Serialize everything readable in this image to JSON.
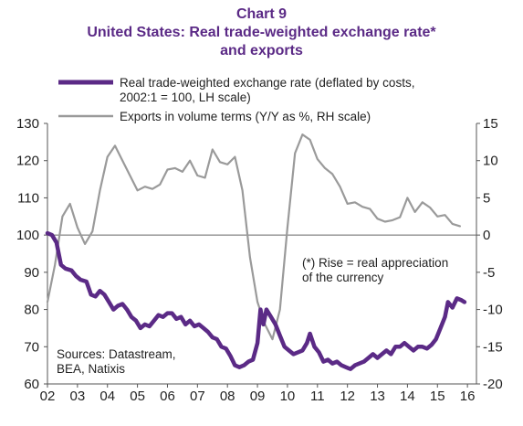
{
  "header": {
    "chart_number": "Chart 9",
    "title_line1": "United States: Real trade-weighted exchange rate*",
    "title_line2": "and exports"
  },
  "chart_data": {
    "type": "line",
    "title": "United States: Real trade-weighted exchange rate* and exports",
    "series": [
      {
        "name": "Real trade-weighted exchange rate (deflated by costs, 2002:1 = 100, LH scale)",
        "legend_line1": "Real trade-weighted exchange rate (deflated by costs,",
        "legend_line2": "2002:1 = 100, LH scale)",
        "axis": "left",
        "color": "#5b2a86",
        "points": [
          [
            2002.0,
            100.5
          ],
          [
            2002.15,
            100
          ],
          [
            2002.3,
            98
          ],
          [
            2002.45,
            92
          ],
          [
            2002.6,
            91
          ],
          [
            2002.8,
            90.5
          ],
          [
            2002.95,
            89
          ],
          [
            2003.1,
            88
          ],
          [
            2003.3,
            87.5
          ],
          [
            2003.45,
            84
          ],
          [
            2003.6,
            83.5
          ],
          [
            2003.75,
            85
          ],
          [
            2003.9,
            84
          ],
          [
            2004.05,
            82
          ],
          [
            2004.2,
            80
          ],
          [
            2004.35,
            81
          ],
          [
            2004.5,
            81.5
          ],
          [
            2004.65,
            80
          ],
          [
            2004.8,
            78
          ],
          [
            2004.95,
            77
          ],
          [
            2005.1,
            75
          ],
          [
            2005.25,
            76
          ],
          [
            2005.4,
            75.5
          ],
          [
            2005.55,
            77
          ],
          [
            2005.7,
            78.5
          ],
          [
            2005.85,
            78
          ],
          [
            2006.0,
            79
          ],
          [
            2006.15,
            79
          ],
          [
            2006.3,
            77.5
          ],
          [
            2006.45,
            78
          ],
          [
            2006.6,
            76
          ],
          [
            2006.75,
            77
          ],
          [
            2006.9,
            75.5
          ],
          [
            2007.05,
            76
          ],
          [
            2007.2,
            75
          ],
          [
            2007.35,
            74
          ],
          [
            2007.5,
            72.5
          ],
          [
            2007.65,
            72
          ],
          [
            2007.8,
            70
          ],
          [
            2007.95,
            69.5
          ],
          [
            2008.1,
            67.5
          ],
          [
            2008.25,
            65
          ],
          [
            2008.4,
            64.5
          ],
          [
            2008.55,
            65
          ],
          [
            2008.7,
            66
          ],
          [
            2008.85,
            66.5
          ],
          [
            2009.0,
            71
          ],
          [
            2009.1,
            80
          ],
          [
            2009.2,
            76
          ],
          [
            2009.3,
            80
          ],
          [
            2009.45,
            78
          ],
          [
            2009.6,
            76
          ],
          [
            2009.75,
            73
          ],
          [
            2009.9,
            70
          ],
          [
            2010.05,
            69
          ],
          [
            2010.2,
            68
          ],
          [
            2010.35,
            68.5
          ],
          [
            2010.5,
            69
          ],
          [
            2010.65,
            71
          ],
          [
            2010.75,
            73.5
          ],
          [
            2010.9,
            70
          ],
          [
            2011.05,
            68.5
          ],
          [
            2011.2,
            66
          ],
          [
            2011.35,
            66.5
          ],
          [
            2011.5,
            65.5
          ],
          [
            2011.65,
            66
          ],
          [
            2011.8,
            65
          ],
          [
            2011.95,
            64.5
          ],
          [
            2012.1,
            64
          ],
          [
            2012.25,
            65
          ],
          [
            2012.4,
            65.5
          ],
          [
            2012.55,
            66
          ],
          [
            2012.7,
            67
          ],
          [
            2012.85,
            68
          ],
          [
            2013.0,
            67
          ],
          [
            2013.15,
            68
          ],
          [
            2013.3,
            69
          ],
          [
            2013.45,
            68
          ],
          [
            2013.6,
            70
          ],
          [
            2013.75,
            70
          ],
          [
            2013.9,
            71
          ],
          [
            2014.05,
            70
          ],
          [
            2014.2,
            69
          ],
          [
            2014.35,
            70
          ],
          [
            2014.5,
            70
          ],
          [
            2014.65,
            69.5
          ],
          [
            2014.8,
            70.5
          ],
          [
            2014.95,
            72
          ],
          [
            2015.1,
            75
          ],
          [
            2015.25,
            78
          ],
          [
            2015.35,
            82
          ],
          [
            2015.5,
            80.5
          ],
          [
            2015.65,
            83
          ],
          [
            2015.8,
            82.5
          ],
          [
            2015.9,
            82
          ]
        ]
      },
      {
        "name": "Exports in volume terms (Y/Y as %, RH scale)",
        "legend_line1": "Exports in volume terms (Y/Y as %, RH scale)",
        "axis": "right",
        "color": "#9a9a9a",
        "points": [
          [
            2002.0,
            -9
          ],
          [
            2002.25,
            -4
          ],
          [
            2002.5,
            2.5
          ],
          [
            2002.75,
            4.2
          ],
          [
            2003.0,
            1
          ],
          [
            2003.25,
            -1.2
          ],
          [
            2003.5,
            0.5
          ],
          [
            2003.75,
            6
          ],
          [
            2004.0,
            10.5
          ],
          [
            2004.25,
            12
          ],
          [
            2004.5,
            10
          ],
          [
            2004.75,
            8
          ],
          [
            2005.0,
            6
          ],
          [
            2005.25,
            6.5
          ],
          [
            2005.5,
            6.2
          ],
          [
            2005.75,
            6.8
          ],
          [
            2006.0,
            8.8
          ],
          [
            2006.25,
            9
          ],
          [
            2006.5,
            8.5
          ],
          [
            2006.75,
            10
          ],
          [
            2007.0,
            8
          ],
          [
            2007.25,
            7.7
          ],
          [
            2007.5,
            11.5
          ],
          [
            2007.75,
            9.8
          ],
          [
            2008.0,
            9.5
          ],
          [
            2008.25,
            10.5
          ],
          [
            2008.5,
            6
          ],
          [
            2008.75,
            -3
          ],
          [
            2009.0,
            -9
          ],
          [
            2009.25,
            -12
          ],
          [
            2009.5,
            -14
          ],
          [
            2009.75,
            -10
          ],
          [
            2010.0,
            1
          ],
          [
            2010.25,
            11
          ],
          [
            2010.5,
            13.5
          ],
          [
            2010.75,
            12.8
          ],
          [
            2011.0,
            10.2
          ],
          [
            2011.25,
            9
          ],
          [
            2011.5,
            8.2
          ],
          [
            2011.75,
            6.5
          ],
          [
            2012.0,
            4.2
          ],
          [
            2012.25,
            4.4
          ],
          [
            2012.5,
            3.8
          ],
          [
            2012.75,
            3.5
          ],
          [
            2013.0,
            2.2
          ],
          [
            2013.25,
            1.8
          ],
          [
            2013.5,
            2
          ],
          [
            2013.75,
            2.4
          ],
          [
            2014.0,
            5
          ],
          [
            2014.25,
            3.1
          ],
          [
            2014.5,
            4.4
          ],
          [
            2014.75,
            3.7
          ],
          [
            2015.0,
            2.5
          ],
          [
            2015.25,
            2.7
          ],
          [
            2015.5,
            1.5
          ],
          [
            2015.75,
            1.2
          ]
        ]
      }
    ],
    "x_ticks": [
      "02",
      "03",
      "04",
      "05",
      "06",
      "07",
      "08",
      "09",
      "10",
      "11",
      "12",
      "13",
      "14",
      "15",
      "16"
    ],
    "x_range": [
      2002,
      2016.3
    ],
    "y_left": {
      "min": 60,
      "max": 130,
      "ticks": [
        60,
        70,
        80,
        90,
        100,
        110,
        120,
        130
      ]
    },
    "y_right": {
      "min": -20,
      "max": 15,
      "ticks": [
        -20,
        -15,
        -10,
        -5,
        0,
        5,
        10,
        15
      ]
    },
    "annotation_line1": "(*) Rise = real appreciation",
    "annotation_line2": "of the currency",
    "sources_line1": "Sources: Datastream,",
    "sources_line2": "BEA, Natixis",
    "grid": false,
    "legend_position": "top"
  }
}
